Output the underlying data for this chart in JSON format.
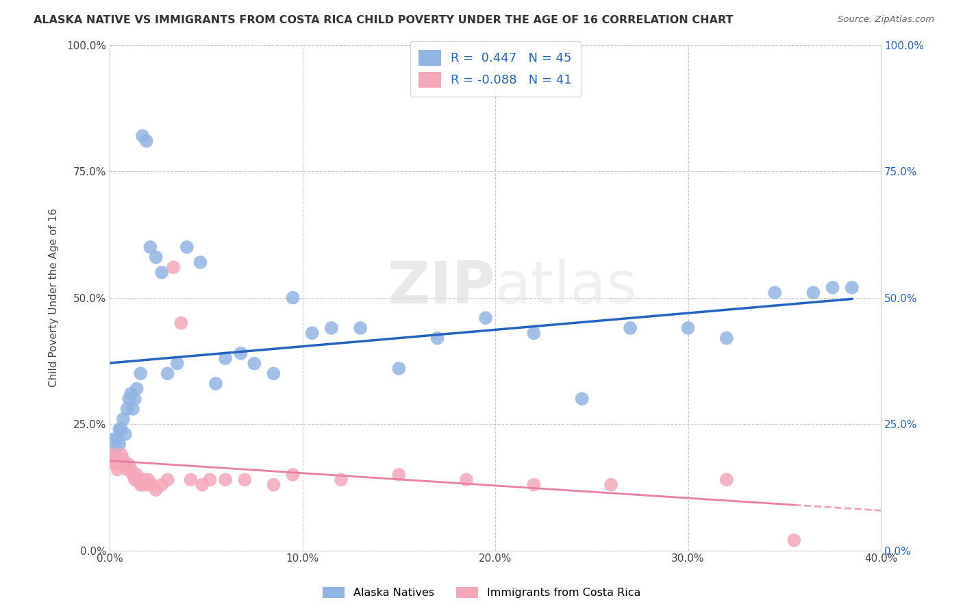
{
  "title": "ALASKA NATIVE VS IMMIGRANTS FROM COSTA RICA CHILD POVERTY UNDER THE AGE OF 16 CORRELATION CHART",
  "source": "Source: ZipAtlas.com",
  "ylabel": "Child Poverty Under the Age of 16",
  "xlabel": "",
  "xlim": [
    0.0,
    0.4
  ],
  "ylim": [
    0.0,
    1.0
  ],
  "yticks": [
    0.0,
    0.25,
    0.5,
    0.75,
    1.0
  ],
  "ytick_labels": [
    "0.0%",
    "25.0%",
    "50.0%",
    "75.0%",
    "100.0%"
  ],
  "xticks": [
    0.0,
    0.1,
    0.2,
    0.3,
    0.4
  ],
  "xtick_labels": [
    "0.0%",
    "10.0%",
    "20.0%",
    "30.0%",
    "40.0%"
  ],
  "R_alaska": 0.447,
  "N_alaska": 45,
  "R_costa": -0.088,
  "N_costa": 41,
  "alaska_color": "#92b4e3",
  "costa_color": "#f4a7b9",
  "alaska_line_color": "#2563c0",
  "costa_line_color": "#e87fa0",
  "background_color": "#ffffff",
  "watermark_part1": "ZIP",
  "watermark_part2": "atlas",
  "alaska_x": [
    0.002,
    0.003,
    0.004,
    0.005,
    0.005,
    0.006,
    0.007,
    0.008,
    0.009,
    0.01,
    0.011,
    0.012,
    0.013,
    0.014,
    0.016,
    0.017,
    0.019,
    0.021,
    0.024,
    0.027,
    0.03,
    0.035,
    0.04,
    0.047,
    0.055,
    0.06,
    0.068,
    0.075,
    0.085,
    0.095,
    0.105,
    0.115,
    0.13,
    0.15,
    0.17,
    0.195,
    0.22,
    0.245,
    0.27,
    0.3,
    0.32,
    0.345,
    0.365,
    0.375,
    0.385
  ],
  "alaska_y": [
    0.22,
    0.2,
    0.22,
    0.24,
    0.21,
    0.24,
    0.26,
    0.23,
    0.28,
    0.3,
    0.31,
    0.28,
    0.3,
    0.32,
    0.35,
    0.82,
    0.81,
    0.6,
    0.58,
    0.55,
    0.35,
    0.37,
    0.6,
    0.57,
    0.33,
    0.38,
    0.39,
    0.37,
    0.35,
    0.5,
    0.43,
    0.44,
    0.44,
    0.36,
    0.42,
    0.46,
    0.43,
    0.3,
    0.44,
    0.44,
    0.42,
    0.51,
    0.51,
    0.52,
    0.52
  ],
  "costa_x": [
    0.001,
    0.002,
    0.003,
    0.004,
    0.005,
    0.005,
    0.006,
    0.007,
    0.008,
    0.009,
    0.01,
    0.011,
    0.012,
    0.013,
    0.014,
    0.015,
    0.016,
    0.017,
    0.018,
    0.019,
    0.02,
    0.022,
    0.024,
    0.027,
    0.03,
    0.033,
    0.037,
    0.042,
    0.048,
    0.052,
    0.06,
    0.07,
    0.085,
    0.095,
    0.12,
    0.15,
    0.185,
    0.22,
    0.26,
    0.32,
    0.355
  ],
  "costa_y": [
    0.19,
    0.18,
    0.17,
    0.16,
    0.17,
    0.18,
    0.19,
    0.18,
    0.17,
    0.16,
    0.17,
    0.16,
    0.15,
    0.14,
    0.15,
    0.14,
    0.13,
    0.13,
    0.14,
    0.13,
    0.14,
    0.13,
    0.12,
    0.13,
    0.14,
    0.56,
    0.45,
    0.14,
    0.13,
    0.14,
    0.14,
    0.14,
    0.13,
    0.15,
    0.14,
    0.15,
    0.14,
    0.13,
    0.13,
    0.14,
    0.02
  ]
}
